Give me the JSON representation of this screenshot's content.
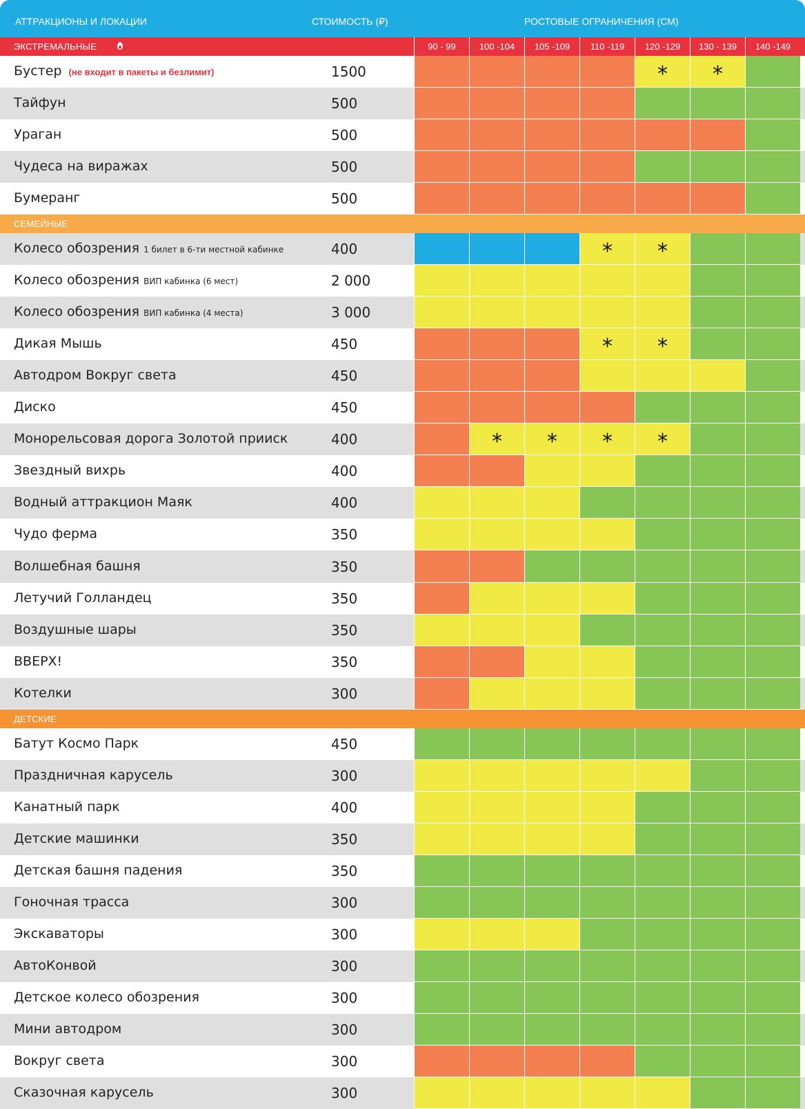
{
  "header": {
    "attractions_label": "АТТРАКЦИОНЫ И ЛОКАЦИИ",
    "price_label": "СТОИМОСТЬ (₽)",
    "height_label": "РОСТОВЫЕ ОГРАНИЧЕНИЯ (СМ)"
  },
  "height_ranges": [
    "90 - 99",
    "100 -104",
    "105 -109",
    "110 -119",
    "120 -129",
    "130 - 139",
    "140 -149"
  ],
  "legend_colors": {
    "o": "#f47f51",
    "y": "#f1ea45",
    "g": "#87c557",
    "b": "#1eace3"
  },
  "sections": [
    {
      "title": "ЭКСТРЕМАЛЬНЫЕ",
      "icon": "fire-icon",
      "color": "#e8333e",
      "rows": [
        {
          "name": "Бустер",
          "sub": "",
          "note": "(не входит в пакеты и безлимит)",
          "price": "1500",
          "cells": [
            "o",
            "o",
            "o",
            "o",
            "y*",
            "y*",
            "g"
          ]
        },
        {
          "name": "Тайфун",
          "sub": "",
          "note": "",
          "price": "500",
          "cells": [
            "o",
            "o",
            "o",
            "o",
            "g",
            "g",
            "g"
          ]
        },
        {
          "name": "Ураган",
          "sub": "",
          "note": "",
          "price": "500",
          "cells": [
            "o",
            "o",
            "o",
            "o",
            "o",
            "o",
            "g"
          ]
        },
        {
          "name": "Чудеса на виражах",
          "sub": "",
          "note": "",
          "price": "500",
          "cells": [
            "o",
            "o",
            "o",
            "o",
            "g",
            "g",
            "g"
          ]
        },
        {
          "name": "Бумеранг",
          "sub": "",
          "note": "",
          "price": "500",
          "cells": [
            "o",
            "o",
            "o",
            "o",
            "o",
            "o",
            "g"
          ]
        }
      ]
    },
    {
      "title": "СЕМЕЙНЫЕ",
      "icon": "",
      "color": "#f8aa4b",
      "rows": [
        {
          "name": "Колесо обозрения",
          "sub": "1 билет в 6-ти местной кабинке",
          "note": "",
          "price": "400",
          "cells": [
            "b",
            "b",
            "b",
            "y*",
            "y*",
            "g",
            "g"
          ]
        },
        {
          "name": "Колесо обозрения",
          "sub": "ВИП кабинка (6 мест)",
          "note": "",
          "price": "2 000",
          "cells": [
            "y",
            "y",
            "y",
            "y",
            "y",
            "g",
            "g"
          ]
        },
        {
          "name": "Колесо обозрения",
          "sub": "ВИП кабинка (4 места)",
          "note": "",
          "price": "3 000",
          "cells": [
            "y",
            "y",
            "y",
            "y",
            "y",
            "g",
            "g"
          ]
        },
        {
          "name": "Дикая Мышь",
          "sub": "",
          "note": "",
          "price": "450",
          "cells": [
            "o",
            "o",
            "o",
            "y*",
            "y*",
            "g",
            "g"
          ]
        },
        {
          "name": "Автодром Вокруг света",
          "sub": "",
          "note": "",
          "price": "450",
          "cells": [
            "o",
            "o",
            "o",
            "y",
            "y",
            "y",
            "g"
          ]
        },
        {
          "name": "Диско",
          "sub": "",
          "note": "",
          "price": "450",
          "cells": [
            "o",
            "o",
            "o",
            "o",
            "g",
            "g",
            "g"
          ]
        },
        {
          "name": "Монорельсовая дорога Золотой прииск",
          "sub": "",
          "note": "",
          "price": "400",
          "cells": [
            "o",
            "y*",
            "y*",
            "y*",
            "y*",
            "g",
            "g"
          ]
        },
        {
          "name": "Звездный вихрь",
          "sub": "",
          "note": "",
          "price": "400",
          "cells": [
            "o",
            "o",
            "y",
            "y",
            "g",
            "g",
            "g"
          ]
        },
        {
          "name": "Водный аттракцион Маяк",
          "sub": "",
          "note": "",
          "price": "400",
          "cells": [
            "y",
            "y",
            "y",
            "g",
            "g",
            "g",
            "g"
          ]
        },
        {
          "name": "Чудо ферма",
          "sub": "",
          "note": "",
          "price": "350",
          "cells": [
            "y",
            "y",
            "y",
            "y",
            "g",
            "g",
            "g"
          ]
        },
        {
          "name": "Волшебная башня",
          "sub": "",
          "note": "",
          "price": "350",
          "cells": [
            "o",
            "o",
            "g",
            "g",
            "g",
            "g",
            "g"
          ]
        },
        {
          "name": "Летучий Голландец",
          "sub": "",
          "note": "",
          "price": "350",
          "cells": [
            "o",
            "y",
            "y",
            "y",
            "g",
            "g",
            "g"
          ]
        },
        {
          "name": "Воздушные шары",
          "sub": "",
          "note": "",
          "price": "350",
          "cells": [
            "y",
            "y",
            "y",
            "g",
            "g",
            "g",
            "g"
          ]
        },
        {
          "name": "ВВЕРХ!",
          "sub": "",
          "note": "",
          "price": "350",
          "cells": [
            "o",
            "o",
            "y",
            "y",
            "g",
            "g",
            "g"
          ]
        },
        {
          "name": "Котелки",
          "sub": "",
          "note": "",
          "price": "300",
          "cells": [
            "o",
            "y",
            "y",
            "y",
            "g",
            "g",
            "g"
          ]
        }
      ]
    },
    {
      "title": "ДЕТСКИЕ",
      "icon": "",
      "color": "#f59332",
      "rows": [
        {
          "name": "Батут Космо Парк",
          "sub": "",
          "note": "",
          "price": "450",
          "cells": [
            "g",
            "g",
            "g",
            "g",
            "g",
            "g",
            "g"
          ]
        },
        {
          "name": "Праздничная карусель",
          "sub": "",
          "note": "",
          "price": "300",
          "cells": [
            "y",
            "y",
            "y",
            "y",
            "y",
            "g",
            "g"
          ]
        },
        {
          "name": "Канатный парк",
          "sub": "",
          "note": "",
          "price": "400",
          "cells": [
            "y",
            "y",
            "y",
            "y",
            "g",
            "g",
            "g"
          ]
        },
        {
          "name": "Детские машинки",
          "sub": "",
          "note": "",
          "price": "350",
          "cells": [
            "y",
            "y",
            "y",
            "y",
            "g",
            "g",
            "g"
          ]
        },
        {
          "name": "Детская башня падения",
          "sub": "",
          "note": "",
          "price": "350",
          "cells": [
            "g",
            "g",
            "g",
            "g",
            "g",
            "g",
            "g"
          ]
        },
        {
          "name": "Гоночная трасса",
          "sub": "",
          "note": "",
          "price": "300",
          "cells": [
            "g",
            "g",
            "g",
            "g",
            "g",
            "g",
            "g"
          ]
        },
        {
          "name": "Экскаваторы",
          "sub": "",
          "note": "",
          "price": "300",
          "cells": [
            "y",
            "y",
            "y",
            "g",
            "g",
            "g",
            "g"
          ]
        },
        {
          "name": "АвтоКонвой",
          "sub": "",
          "note": "",
          "price": "300",
          "cells": [
            "g",
            "g",
            "g",
            "g",
            "g",
            "g",
            "g"
          ]
        },
        {
          "name": "Детское колесо обозрения",
          "sub": "",
          "note": "",
          "price": "300",
          "cells": [
            "g",
            "g",
            "g",
            "g",
            "g",
            "g",
            "g"
          ]
        },
        {
          "name": "Мини автодром",
          "sub": "",
          "note": "",
          "price": "300",
          "cells": [
            "g",
            "g",
            "g",
            "g",
            "g",
            "g",
            "g"
          ]
        },
        {
          "name": "Вокруг света",
          "sub": "",
          "note": "",
          "price": "300",
          "cells": [
            "o",
            "o",
            "o",
            "o",
            "g",
            "g",
            "g"
          ]
        },
        {
          "name": "Сказочная карусель",
          "sub": "",
          "note": "",
          "price": "300",
          "cells": [
            "y",
            "y",
            "y",
            "y",
            "y",
            "g",
            "g"
          ]
        }
      ]
    }
  ]
}
